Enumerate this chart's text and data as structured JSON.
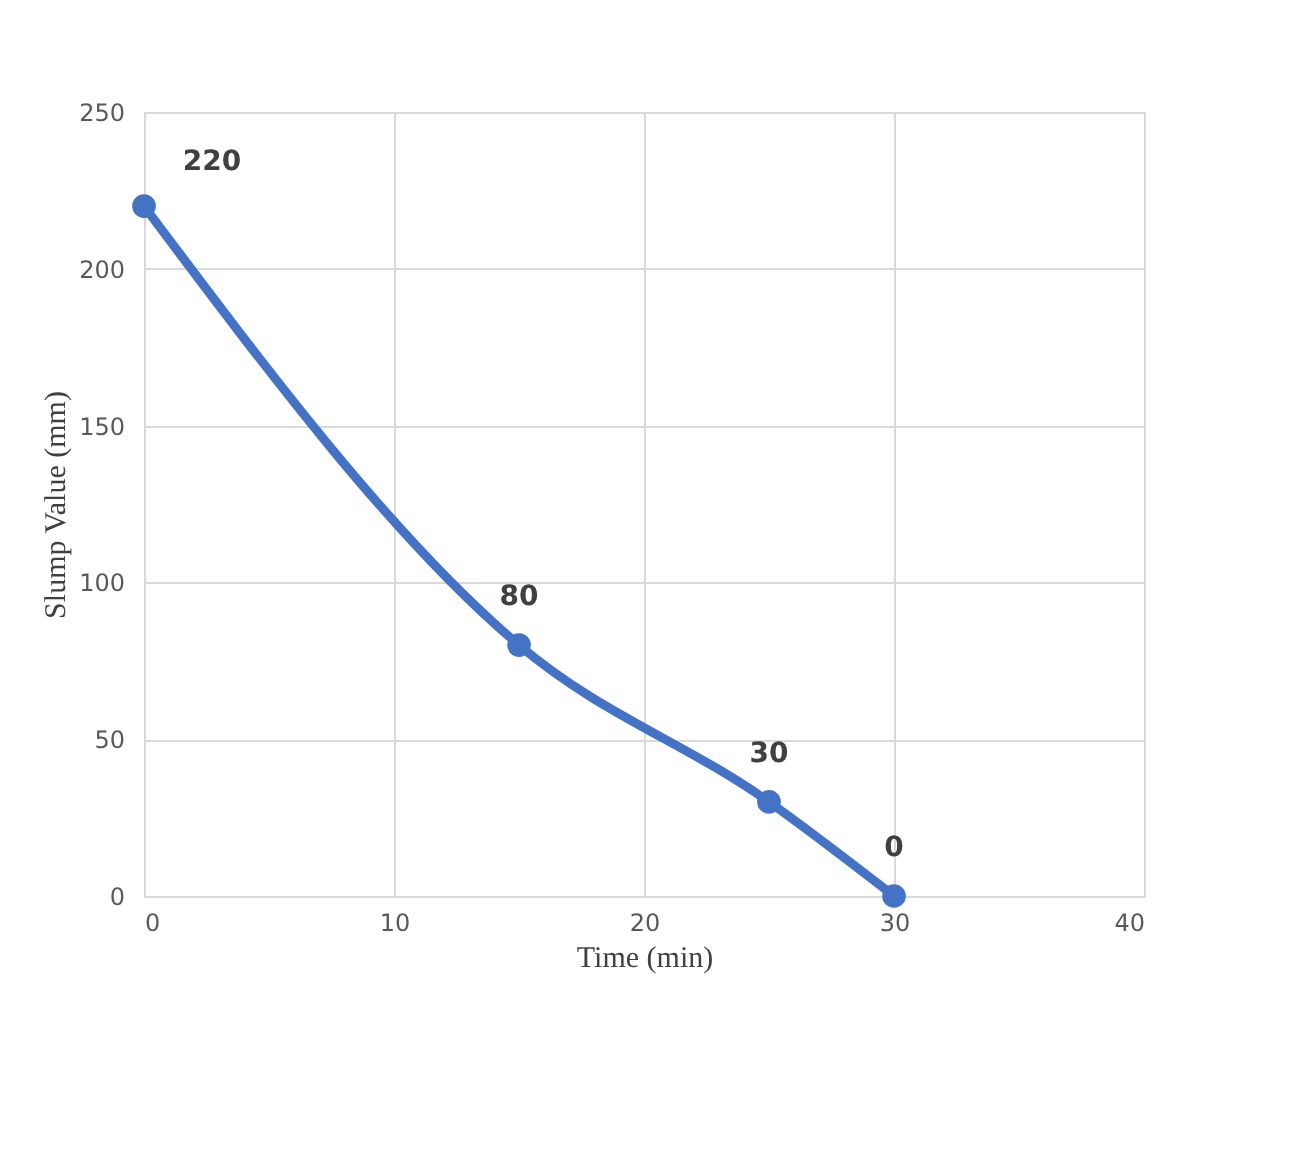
{
  "chart_data": {
    "type": "line",
    "xlabel": "Time (min)",
    "ylabel": "Slump Value (mm)",
    "x": [
      0,
      15,
      25,
      30
    ],
    "series": [
      {
        "color": "#4472c4",
        "values": [
          220,
          80,
          30,
          0
        ]
      }
    ],
    "xlim": [
      0,
      40
    ],
    "xticks": [
      0,
      10,
      20,
      30,
      40
    ],
    "ylim": [
      0,
      250
    ],
    "yticks": [
      0,
      50,
      100,
      150,
      200,
      250
    ],
    "grid": true,
    "marker": "circle",
    "data_labels": true,
    "line_style": "solid"
  }
}
